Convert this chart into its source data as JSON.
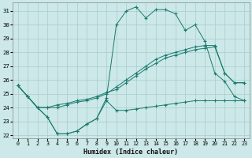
{
  "background_color": "#cce8e8",
  "grid_color": "#aacccc",
  "line_color": "#1a7a6e",
  "xlim": [
    -0.5,
    23.5
  ],
  "ylim": [
    21.8,
    31.6
  ],
  "yticks": [
    22,
    23,
    24,
    25,
    26,
    27,
    28,
    29,
    30,
    31
  ],
  "xticks": [
    0,
    1,
    2,
    3,
    4,
    5,
    6,
    7,
    8,
    9,
    10,
    11,
    12,
    13,
    14,
    15,
    16,
    17,
    18,
    19,
    20,
    21,
    22,
    23
  ],
  "xlabel": "Humidex (Indice chaleur)",
  "series": [
    {
      "x": [
        0,
        1,
        2,
        3,
        4,
        5,
        6,
        7,
        8,
        9,
        10,
        11,
        12,
        13,
        14,
        15,
        16,
        17,
        18,
        19,
        20,
        21,
        22,
        23
      ],
      "y": [
        25.6,
        24.8,
        24.0,
        23.3,
        22.1,
        22.1,
        22.3,
        22.8,
        23.2,
        24.7,
        30.0,
        31.0,
        31.3,
        30.5,
        31.1,
        31.1,
        30.8,
        29.6,
        30.0,
        28.8,
        26.5,
        25.9,
        24.8,
        24.5
      ]
    },
    {
      "x": [
        0,
        1,
        2,
        3,
        4,
        5,
        6,
        7,
        8,
        9,
        10,
        11,
        12,
        13,
        14,
        15,
        16,
        17,
        18,
        19,
        20,
        21,
        22,
        23
      ],
      "y": [
        25.6,
        24.8,
        24.0,
        24.0,
        24.0,
        24.2,
        24.4,
        24.5,
        24.7,
        25.0,
        25.5,
        26.0,
        26.5,
        27.0,
        27.5,
        27.8,
        28.0,
        28.2,
        28.4,
        28.5,
        28.5,
        26.5,
        25.8,
        25.8
      ]
    },
    {
      "x": [
        0,
        1,
        2,
        3,
        4,
        5,
        6,
        7,
        8,
        9,
        10,
        11,
        12,
        13,
        14,
        15,
        16,
        17,
        18,
        19,
        20,
        21,
        22,
        23
      ],
      "y": [
        25.6,
        24.8,
        24.0,
        24.0,
        24.2,
        24.3,
        24.5,
        24.6,
        24.8,
        25.1,
        25.3,
        25.8,
        26.3,
        26.8,
        27.2,
        27.6,
        27.8,
        28.0,
        28.2,
        28.3,
        28.4,
        26.5,
        25.8,
        25.8
      ]
    },
    {
      "x": [
        0,
        1,
        2,
        3,
        4,
        5,
        6,
        7,
        8,
        9,
        10,
        11,
        12,
        13,
        14,
        15,
        16,
        17,
        18,
        19,
        20,
        21,
        22,
        23
      ],
      "y": [
        25.6,
        24.8,
        24.0,
        23.3,
        22.1,
        22.1,
        22.3,
        22.8,
        23.2,
        24.5,
        23.8,
        23.8,
        23.9,
        24.0,
        24.1,
        24.2,
        24.3,
        24.4,
        24.5,
        24.5,
        24.5,
        24.5,
        24.5,
        24.5
      ]
    }
  ]
}
